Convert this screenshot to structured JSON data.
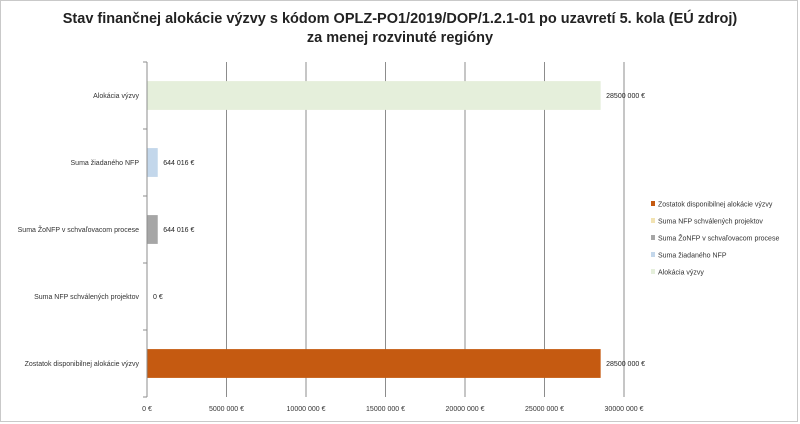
{
  "chart_data": {
    "type": "bar",
    "orientation": "horizontal",
    "title_line1": "Stav finančnej alokácie výzvy s kódom OPLZ-PO1/2019/DOP/1.2.1-01 po uzavretí 5. kola (EÚ zdroj)",
    "title_line2": "za menej rozvinuté regióny",
    "categories": [
      "Alokácia výzvy",
      "Suma žiadaného NFP",
      "Suma ŽoNFP v schvaľovacom procese",
      "Suma NFP schválených projektov",
      "Zostatok disponibilnej alokácie výzvy"
    ],
    "values": [
      28500000,
      644016,
      644016,
      0,
      28500000
    ],
    "data_labels": [
      "28500 000 €",
      "644 016 €",
      "644 016 €",
      "0 €",
      "28500 000 €"
    ],
    "colors": [
      "#e5efdb",
      "#c3d7eb",
      "#a6a6a6",
      "#f2e3b3",
      "#c55a11"
    ],
    "xlim": [
      0,
      30000000
    ],
    "x_ticks": [
      0,
      5000000,
      10000000,
      15000000,
      20000000,
      25000000,
      30000000
    ],
    "x_tick_labels": [
      "0 €",
      "5000 000 €",
      "10000 000 €",
      "15000 000 €",
      "20000 000 €",
      "25000 000 €",
      "30000 000 €"
    ],
    "gridlines": "vertical",
    "legend_position": "right",
    "legend": [
      {
        "label": "Zostatok disponibilnej alokácie výzvy",
        "color": "#c55a11"
      },
      {
        "label": "Suma NFP schválených projektov",
        "color": "#f2e3b3"
      },
      {
        "label": "Suma ŽoNFP v schvaľovacom procese",
        "color": "#a6a6a6"
      },
      {
        "label": "Suma žiadaného NFP",
        "color": "#c3d7eb"
      },
      {
        "label": "Alokácia výzvy",
        "color": "#e5efdb"
      }
    ]
  }
}
